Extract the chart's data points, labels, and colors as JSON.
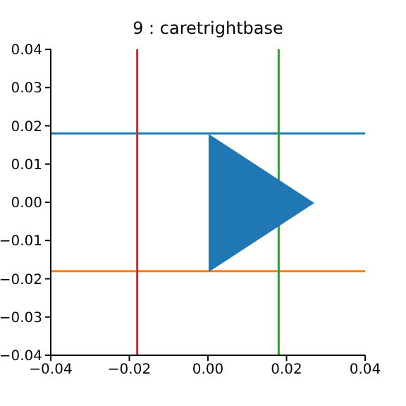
{
  "chart_data": {
    "type": "scatter",
    "title": "9 : caretrightbase",
    "grid": false,
    "xlim": [
      -0.04,
      0.04
    ],
    "ylim": [
      -0.04,
      0.04
    ],
    "xticks": [
      {
        "value": -0.04,
        "label": "−0.04"
      },
      {
        "value": -0.02,
        "label": "−0.02"
      },
      {
        "value": 0,
        "label": "0.00"
      },
      {
        "value": 0.02,
        "label": "0.02"
      },
      {
        "value": 0.04,
        "label": "0.04"
      }
    ],
    "yticks": [
      {
        "value": -0.04,
        "label": "−0.04"
      },
      {
        "value": -0.03,
        "label": "−0.03"
      },
      {
        "value": -0.02,
        "label": "−0.02"
      },
      {
        "value": -0.01,
        "label": "−0.01"
      },
      {
        "value": 0,
        "label": "0.00"
      },
      {
        "value": 0.01,
        "label": "0.01"
      },
      {
        "value": 0.02,
        "label": "0.02"
      },
      {
        "value": 0.03,
        "label": "0.03"
      },
      {
        "value": 0.04,
        "label": "0.04"
      }
    ],
    "ref_lines": [
      {
        "axis": "y",
        "value": 0.018,
        "color": "#1f77b4"
      },
      {
        "axis": "y",
        "value": -0.018,
        "color": "#ff7f0e"
      },
      {
        "axis": "x",
        "value": -0.018,
        "color": "#d62728"
      },
      {
        "axis": "x",
        "value": 0.018,
        "color": "#2ca02c"
      }
    ]
  }
}
